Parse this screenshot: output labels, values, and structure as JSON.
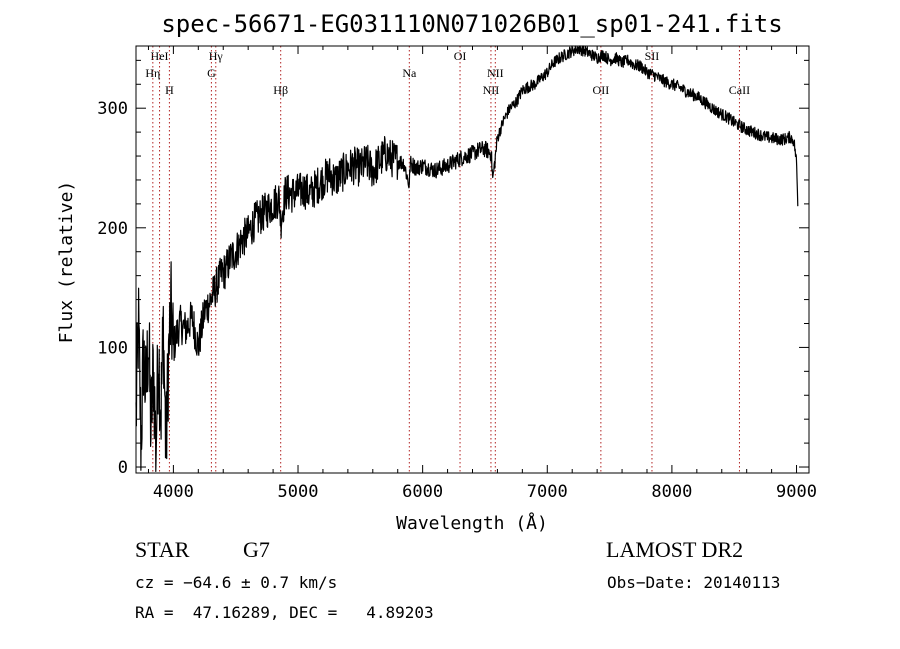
{
  "chart_data": {
    "type": "line",
    "title": "spec-56671-EG031110N071026B01_sp01-241.fits",
    "xlabel": "Wavelength (Å)",
    "ylabel": "Flux (relative)",
    "xlim": [
      3700,
      9100
    ],
    "ylim": [
      -5,
      352
    ],
    "xticks": [
      {
        "value": 4000,
        "label": "4000"
      },
      {
        "value": 5000,
        "label": "5000"
      },
      {
        "value": 6000,
        "label": "6000"
      },
      {
        "value": 7000,
        "label": "7000"
      },
      {
        "value": 8000,
        "label": "8000"
      },
      {
        "value": 9000,
        "label": "9000"
      }
    ],
    "yticks": [
      {
        "value": 0,
        "label": "0"
      },
      {
        "value": 100,
        "label": "100"
      },
      {
        "value": 200,
        "label": "200"
      },
      {
        "value": 300,
        "label": "300"
      }
    ],
    "grid": false,
    "line_color": "#000000",
    "marker_color": "#b22222",
    "series": [
      {
        "x": [
          3700,
          3720,
          3740,
          3760,
          3780,
          3800,
          3820,
          3840,
          3860,
          3880,
          3900,
          3920,
          3940,
          3960,
          3980,
          4000,
          4050,
          4100,
          4150,
          4200,
          4250,
          4300,
          4340,
          4380,
          4420,
          4460,
          4500,
          4550,
          4600,
          4650,
          4700,
          4750,
          4800,
          4850,
          4861,
          4900,
          4950,
          5000,
          5050,
          5100,
          5150,
          5200,
          5250,
          5300,
          5350,
          5400,
          5450,
          5500,
          5550,
          5600,
          5650,
          5700,
          5750,
          5800,
          5850,
          5893,
          5900,
          5950,
          6000,
          6050,
          6100,
          6150,
          6200,
          6250,
          6300,
          6350,
          6400,
          6450,
          6500,
          6550,
          6563,
          6600,
          6650,
          6700,
          6750,
          6800,
          6850,
          6900,
          6950,
          7000,
          7050,
          7100,
          7150,
          7200,
          7250,
          7300,
          7350,
          7400,
          7450,
          7500,
          7550,
          7600,
          7650,
          7700,
          7750,
          7800,
          7850,
          7900,
          7950,
          8000,
          8050,
          8100,
          8150,
          8200,
          8250,
          8300,
          8350,
          8400,
          8450,
          8500,
          8550,
          8600,
          8650,
          8700,
          8750,
          8800,
          8850,
          8900,
          8950,
          8980,
          9000,
          9010
        ],
        "y": [
          40,
          120,
          20,
          95,
          60,
          110,
          30,
          85,
          15,
          100,
          45,
          120,
          10,
          90,
          130,
          100,
          120,
          115,
          125,
          100,
          130,
          140,
          150,
          160,
          165,
          175,
          180,
          190,
          195,
          205,
          210,
          215,
          220,
          225,
          205,
          230,
          228,
          230,
          232,
          228,
          235,
          240,
          245,
          240,
          245,
          250,
          252,
          250,
          255,
          248,
          255,
          262,
          258,
          256,
          254,
          235,
          254,
          250,
          252,
          250,
          248,
          250,
          252,
          255,
          258,
          260,
          262,
          265,
          266,
          262,
          240,
          275,
          290,
          300,
          305,
          315,
          318,
          320,
          325,
          330,
          338,
          342,
          345,
          348,
          350,
          348,
          345,
          342,
          345,
          340,
          342,
          338,
          340,
          336,
          335,
          330,
          328,
          325,
          322,
          320,
          318,
          315,
          312,
          310,
          306,
          302,
          298,
          295,
          292,
          288,
          285,
          282,
          280,
          278,
          276,
          275,
          274,
          274,
          276,
          272,
          255,
          220
        ]
      }
    ],
    "lines": [
      {
        "label": "HeI",
        "x": 3889,
        "row": 0
      },
      {
        "label": "Hη",
        "x": 3835,
        "row": 1
      },
      {
        "label": "H",
        "x": 3968,
        "row": 2
      },
      {
        "label": "Hγ",
        "x": 4340,
        "row": 0
      },
      {
        "label": "G",
        "x": 4305,
        "row": 1
      },
      {
        "label": "Hβ",
        "x": 4861,
        "row": 2
      },
      {
        "label": "Na",
        "x": 5893,
        "row": 1
      },
      {
        "label": "OI",
        "x": 6300,
        "row": 0
      },
      {
        "label": "NII",
        "x": 6583,
        "row": 1
      },
      {
        "label": "NII",
        "x": 6548,
        "row": 2
      },
      {
        "label": "SII",
        "x": 7840,
        "row": 0
      },
      {
        "label": "OII",
        "x": 7430,
        "row": 2
      },
      {
        "label": "CaII",
        "x": 8542,
        "row": 2
      }
    ]
  },
  "info": {
    "class": "STAR",
    "subclass": "G7",
    "survey": "LAMOST DR2",
    "cz": "cz = −64.6 ± 0.7 km/s",
    "obs_date": "Obs−Date: 20140113",
    "radec": "RA =  47.16289, DEC =   4.89203"
  }
}
